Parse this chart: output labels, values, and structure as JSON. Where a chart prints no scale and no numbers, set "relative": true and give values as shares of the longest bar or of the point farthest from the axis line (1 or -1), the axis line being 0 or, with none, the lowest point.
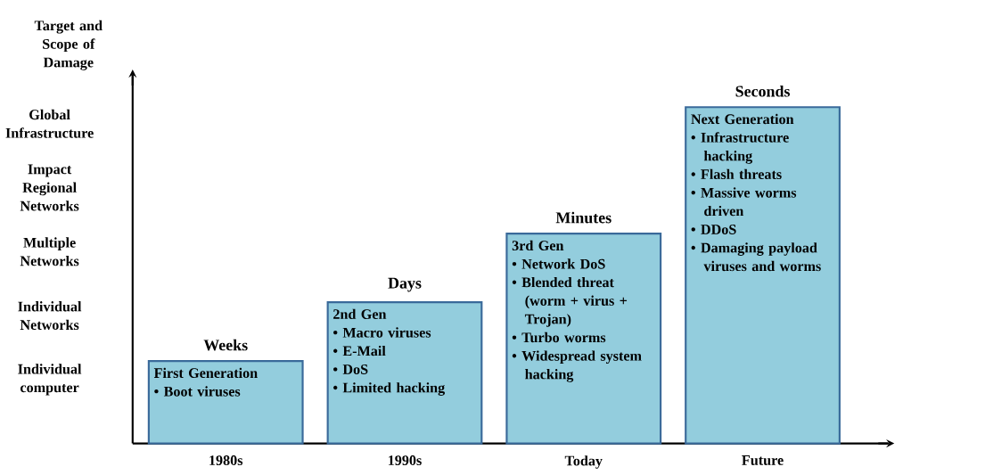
{
  "chart_data": {
    "type": "bar",
    "relative": true,
    "ylabel": "Target and Scope of Damage",
    "categories": [
      "1980s",
      "1990s",
      "Today",
      "Future"
    ],
    "values": [
      0.245,
      0.42,
      0.624,
      1
    ],
    "color": "#93cddd",
    "annotations": [
      "Weeks",
      "Days",
      "Minutes",
      "Seconds",
      "Global Infrastructure",
      "Impact Regional Networks",
      "Multiple Networks",
      "Individual Networks",
      "Individual computer",
      "First Generation",
      "• Boot viruses",
      "2nd  Gen",
      "• Macro viruses",
      "• E-Mail",
      "• DoS",
      "• Limited hacking",
      "3rd  Gen",
      "• Network DoS",
      "• Blended threat (worm + virus + Trojan)",
      "• Turbo worms",
      "• Widespread system hacking",
      "Next Generation",
      "• Infrastructure hacking",
      "• Flash threats",
      "• Massive worms driven",
      "• DDoS",
      "• Damaging payload viruses and worms"
    ]
  }
}
